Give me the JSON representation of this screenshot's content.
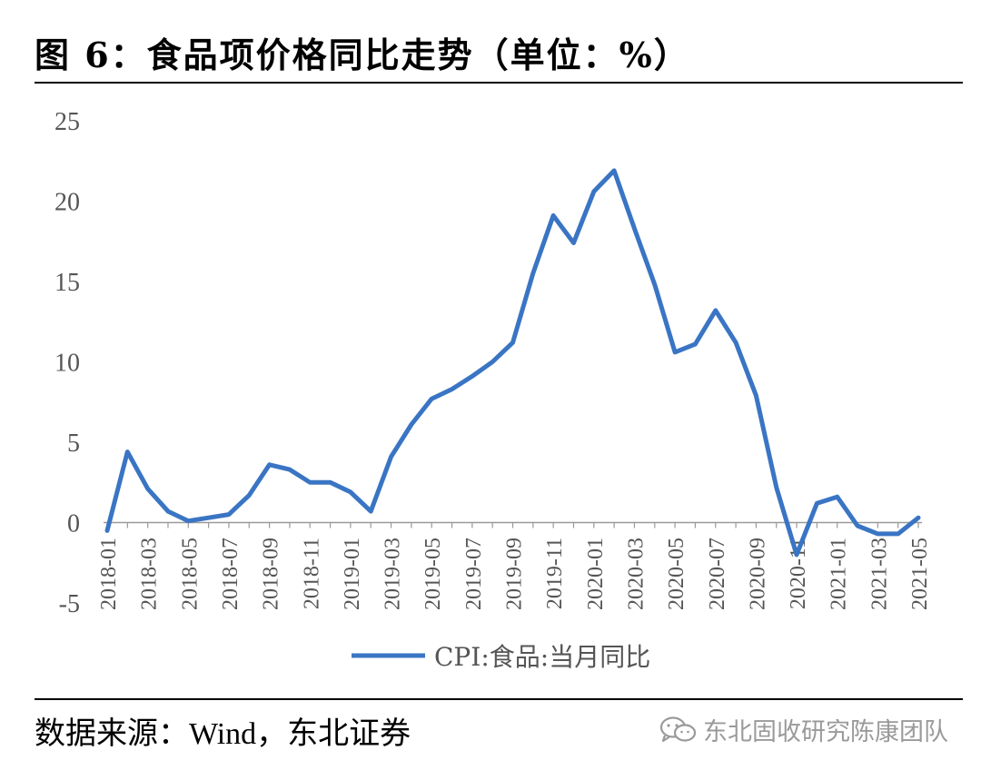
{
  "title": "图 6：食品项价格同比走势（单位：%）",
  "source": "数据来源：Wind，东北证券",
  "watermark": {
    "text": "东北固收研究陈康团队",
    "icon": "wechat-icon"
  },
  "colors": {
    "line": "#3a75c4",
    "axis": "#999999",
    "tick_label": "#555555"
  },
  "chart_data": {
    "type": "line",
    "title": "",
    "xlabel": "",
    "ylabel": "",
    "ylim": [
      -5,
      25
    ],
    "yticks": [
      25,
      20,
      15,
      10,
      5,
      0,
      -5
    ],
    "x": [
      "2018-01",
      "2018-02",
      "2018-03",
      "2018-04",
      "2018-05",
      "2018-06",
      "2018-07",
      "2018-08",
      "2018-09",
      "2018-10",
      "2018-11",
      "2018-12",
      "2019-01",
      "2019-02",
      "2019-03",
      "2019-04",
      "2019-05",
      "2019-06",
      "2019-07",
      "2019-08",
      "2019-09",
      "2019-10",
      "2019-11",
      "2019-12",
      "2020-01",
      "2020-02",
      "2020-03",
      "2020-04",
      "2020-05",
      "2020-06",
      "2020-07",
      "2020-08",
      "2020-09",
      "2020-10",
      "2020-11",
      "2020-12",
      "2021-01",
      "2021-02",
      "2021-03",
      "2021-04",
      "2021-05"
    ],
    "xtick_labels": [
      "2018-01",
      "2018-03",
      "2018-05",
      "2018-07",
      "2018-09",
      "2018-11",
      "2019-01",
      "2019-03",
      "2019-05",
      "2019-07",
      "2019-09",
      "2019-11",
      "2020-01",
      "2020-03",
      "2020-05",
      "2020-07",
      "2020-09",
      "2020-11",
      "2021-01",
      "2021-03",
      "2021-05"
    ],
    "legend_position": "bottom",
    "series": [
      {
        "name": "CPI:食品:当月同比",
        "values": [
          -0.5,
          4.4,
          2.1,
          0.7,
          0.1,
          0.3,
          0.5,
          1.7,
          3.6,
          3.3,
          2.5,
          2.5,
          1.9,
          0.7,
          4.1,
          6.1,
          7.7,
          8.3,
          9.1,
          10.0,
          11.2,
          15.5,
          19.1,
          17.4,
          20.6,
          21.9,
          18.3,
          14.8,
          10.6,
          11.1,
          13.2,
          11.2,
          7.9,
          2.2,
          -2.0,
          1.2,
          1.6,
          -0.2,
          -0.7,
          -0.7,
          0.3
        ]
      }
    ]
  }
}
